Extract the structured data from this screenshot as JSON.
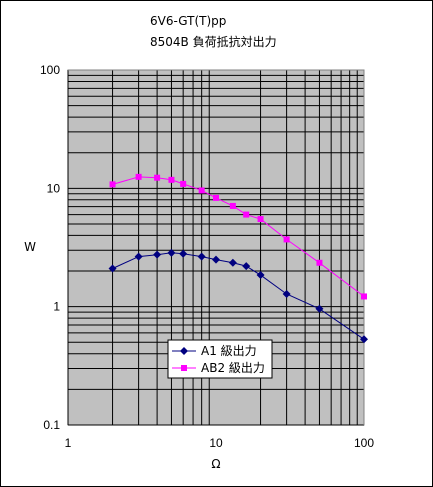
{
  "chart_data": {
    "type": "line",
    "title": "6V6-GT(T)pp",
    "subtitle": "8504B 負荷抵抗対出力",
    "xlabel": "Ω",
    "ylabel": "W",
    "xscale": "log",
    "yscale": "log",
    "xlim": [
      1,
      100
    ],
    "ylim": [
      0.1,
      100
    ],
    "x_ticks": [
      "1",
      "10",
      "100"
    ],
    "y_ticks": [
      "0.1",
      "1",
      "10",
      "100"
    ],
    "grid": true,
    "legend_position": "bottom-left inside plot",
    "series": [
      {
        "name": "A1 級出力",
        "color": "#000080",
        "marker": "diamond",
        "x": [
          2,
          3,
          4,
          5,
          6,
          8,
          10,
          13,
          16,
          20,
          30,
          50,
          100
        ],
        "y": [
          2.1,
          2.65,
          2.75,
          2.85,
          2.8,
          2.65,
          2.5,
          2.35,
          2.2,
          1.85,
          1.28,
          0.96,
          0.53
        ]
      },
      {
        "name": "AB2 級出力",
        "color": "#ff00ff",
        "marker": "square",
        "x": [
          2,
          3,
          4,
          5,
          6,
          8,
          10,
          13,
          16,
          20,
          30,
          50,
          100
        ],
        "y": [
          10.8,
          12.5,
          12.3,
          11.8,
          10.9,
          9.6,
          8.3,
          7.1,
          6.0,
          5.5,
          3.7,
          2.35,
          1.22
        ]
      }
    ]
  }
}
